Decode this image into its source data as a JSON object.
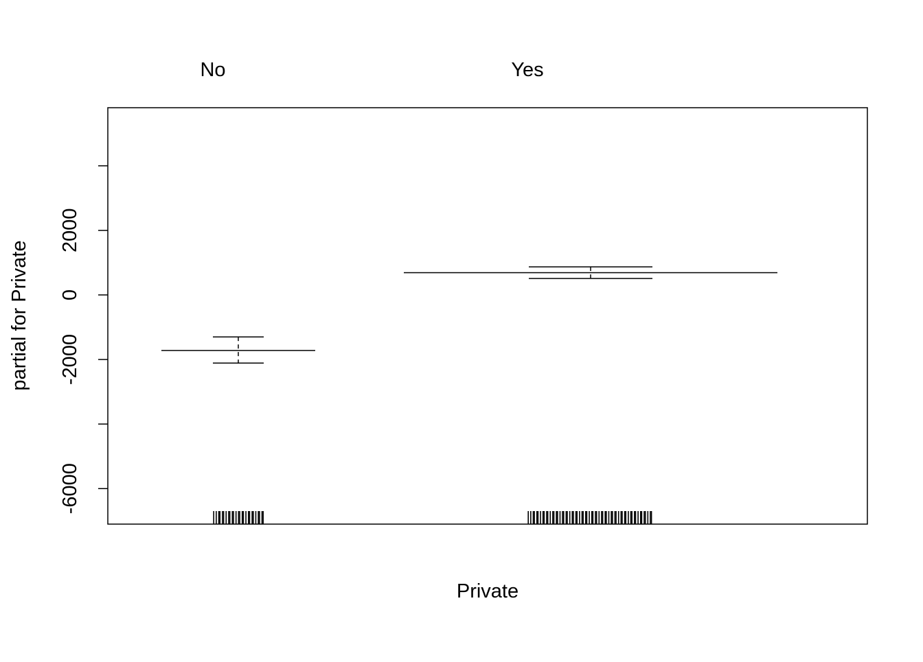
{
  "chart_data": {
    "type": "termplot",
    "xlabel": "Private",
    "ylabel": "partial for Private",
    "categories": [
      "No",
      "Yes"
    ],
    "y_ticks": [
      -6000,
      -4000,
      -2000,
      0,
      2000,
      4000
    ],
    "y_tick_labels": [
      "-6000",
      "",
      "-2000",
      "0",
      "2000",
      ""
    ],
    "ylim": [
      -7100,
      5800
    ],
    "levels": [
      {
        "name": "No",
        "estimate": -1720,
        "se_upper": -1300,
        "se_lower": -2110
      },
      {
        "name": "Yes",
        "estimate": 690,
        "se_upper": 870,
        "se_lower": 510
      }
    ],
    "rug": {
      "No": {
        "count": 26
      },
      "Yes": {
        "count": 64
      }
    }
  }
}
